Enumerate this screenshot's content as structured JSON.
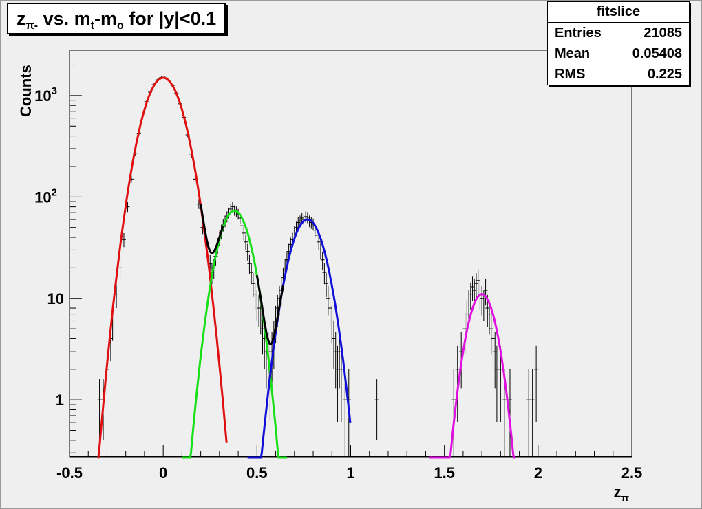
{
  "chart_data": {
    "type": "scatter",
    "title": "z",
    "title_sub": "π-",
    "title_rest": " vs. m",
    "title_sub2": "t",
    "title_rest2": "-m",
    "title_sub3": "o",
    "title_rest3": " for |y|<0.1",
    "xlabel": "z",
    "xlabel_sub": "π",
    "ylabel": "Counts",
    "xlim": [
      -0.5,
      2.5
    ],
    "ylim": [
      0.27,
      2800
    ],
    "yscale": "log",
    "x_ticks": [
      {
        "v": -0.5,
        "label": "-0.5"
      },
      {
        "v": 0,
        "label": "0"
      },
      {
        "v": 0.5,
        "label": "0.5"
      },
      {
        "v": 1,
        "label": "1"
      },
      {
        "v": 1.5,
        "label": "1.5"
      },
      {
        "v": 2,
        "label": "2"
      },
      {
        "v": 2.5,
        "label": "2.5"
      }
    ],
    "y_ticks": [
      {
        "v": 1,
        "label": "1"
      },
      {
        "v": 10,
        "label": "10"
      },
      {
        "v": 100,
        "label": "10",
        "sup": "2"
      },
      {
        "v": 1000,
        "label": "10",
        "sup": "3"
      }
    ],
    "stats": {
      "name": "fitslice",
      "rows": [
        {
          "key": "Entries",
          "value": "21085"
        },
        {
          "key": "Mean",
          "value": "0.05408"
        },
        {
          "key": "RMS",
          "value": "0.225"
        }
      ]
    },
    "fits": [
      {
        "color": "#e01010",
        "amp": 1500,
        "mean": 0.0,
        "sigma": 0.083,
        "from": -0.35,
        "to": 0.34
      },
      {
        "color": "#18e018",
        "amp": 73,
        "mean": 0.38,
        "sigma": 0.07,
        "from": 0.1,
        "to": 0.66
      },
      {
        "color": "#1010d8",
        "amp": 60,
        "mean": 0.77,
        "sigma": 0.075,
        "from": 0.45,
        "to": 1.0
      },
      {
        "color": "#e010e0",
        "amp": 11,
        "mean": 1.7,
        "sigma": 0.062,
        "from": 1.42,
        "to": 1.88
      }
    ],
    "combined_color": "#000000",
    "points": [
      [
        -0.34,
        1,
        0.6
      ],
      [
        -0.32,
        1,
        0.6
      ],
      [
        -0.3,
        2,
        0.9
      ],
      [
        -0.28,
        4,
        1.6
      ],
      [
        -0.27,
        6,
        2.2
      ],
      [
        -0.25,
        11,
        3
      ],
      [
        -0.23,
        20,
        4.5
      ],
      [
        -0.21,
        38,
        6
      ],
      [
        -0.19,
        80,
        9
      ],
      [
        -0.17,
        150,
        12
      ],
      [
        -0.15,
        270,
        17
      ],
      [
        -0.13,
        420,
        21
      ],
      [
        -0.11,
        630,
        25
      ],
      [
        -0.09,
        870,
        29
      ],
      [
        -0.07,
        1080,
        33
      ],
      [
        -0.05,
        1280,
        36
      ],
      [
        -0.03,
        1430,
        38
      ],
      [
        -0.01,
        1510,
        39
      ],
      [
        0.01,
        1500,
        39
      ],
      [
        0.03,
        1420,
        38
      ],
      [
        0.05,
        1260,
        35
      ],
      [
        0.07,
        1060,
        33
      ],
      [
        0.09,
        830,
        29
      ],
      [
        0.11,
        610,
        25
      ],
      [
        0.13,
        410,
        20
      ],
      [
        0.15,
        260,
        16
      ],
      [
        0.17,
        150,
        12
      ],
      [
        0.19,
        85,
        9
      ],
      [
        0.21,
        50,
        7
      ],
      [
        0.23,
        33,
        6
      ],
      [
        0.25,
        22,
        4.7
      ],
      [
        0.26,
        18,
        4.2
      ],
      [
        0.27,
        20,
        4.5
      ],
      [
        0.28,
        26,
        5
      ],
      [
        0.29,
        33,
        5.7
      ],
      [
        0.3,
        39,
        6.2
      ],
      [
        0.31,
        46,
        6.8
      ],
      [
        0.32,
        53,
        7.3
      ],
      [
        0.33,
        58,
        7.6
      ],
      [
        0.34,
        64,
        8
      ],
      [
        0.35,
        70,
        8.4
      ],
      [
        0.36,
        76,
        8.7
      ],
      [
        0.37,
        80,
        9
      ],
      [
        0.38,
        74,
        8.6
      ],
      [
        0.39,
        72,
        8.5
      ],
      [
        0.4,
        68,
        8.2
      ],
      [
        0.41,
        62,
        7.9
      ],
      [
        0.42,
        52,
        7.2
      ],
      [
        0.43,
        44,
        6.6
      ],
      [
        0.44,
        36,
        6
      ],
      [
        0.45,
        29,
        5.4
      ],
      [
        0.46,
        22,
        4.7
      ],
      [
        0.47,
        18,
        4.2
      ],
      [
        0.48,
        14,
        3.7
      ],
      [
        0.49,
        11,
        3.3
      ],
      [
        0.5,
        9,
        3
      ],
      [
        0.51,
        8,
        2.8
      ],
      [
        0.52,
        7,
        2.6
      ],
      [
        0.53,
        5,
        2.2
      ],
      [
        0.54,
        4,
        2
      ],
      [
        0.55,
        3,
        1.7
      ],
      [
        0.56,
        3,
        1.7
      ],
      [
        0.57,
        2,
        1.4
      ],
      [
        0.58,
        3,
        1.7
      ],
      [
        0.59,
        4,
        2
      ],
      [
        0.6,
        6,
        2.4
      ],
      [
        0.61,
        8,
        2.8
      ],
      [
        0.62,
        10,
        3.2
      ],
      [
        0.63,
        12,
        3.5
      ],
      [
        0.64,
        16,
        4
      ],
      [
        0.65,
        20,
        4.5
      ],
      [
        0.66,
        24,
        4.9
      ],
      [
        0.67,
        29,
        5.4
      ],
      [
        0.68,
        34,
        5.8
      ],
      [
        0.69,
        38,
        6.2
      ],
      [
        0.7,
        45,
        6.7
      ],
      [
        0.71,
        50,
        7
      ],
      [
        0.72,
        56,
        7.5
      ],
      [
        0.73,
        58,
        7.6
      ],
      [
        0.74,
        62,
        7.9
      ],
      [
        0.75,
        60,
        7.7
      ],
      [
        0.76,
        64,
        8
      ],
      [
        0.77,
        63,
        7.9
      ],
      [
        0.78,
        58,
        7.6
      ],
      [
        0.79,
        56,
        7.5
      ],
      [
        0.8,
        54,
        7.3
      ],
      [
        0.81,
        47,
        6.9
      ],
      [
        0.82,
        42,
        6.5
      ],
      [
        0.83,
        36,
        6
      ],
      [
        0.84,
        30,
        5.5
      ],
      [
        0.85,
        24,
        4.9
      ],
      [
        0.86,
        18,
        4.2
      ],
      [
        0.87,
        14,
        3.7
      ],
      [
        0.88,
        10,
        3.2
      ],
      [
        0.89,
        8,
        2.8
      ],
      [
        0.9,
        6,
        2.4
      ],
      [
        0.91,
        4,
        2
      ],
      [
        0.92,
        3,
        1.7
      ],
      [
        0.93,
        2,
        1.4
      ],
      [
        0.94,
        3,
        1.7
      ],
      [
        0.95,
        2,
        1.4
      ],
      [
        0.97,
        1,
        1
      ],
      [
        0.99,
        1,
        1
      ],
      [
        1.14,
        1,
        0.6
      ],
      [
        1.55,
        1,
        1
      ],
      [
        1.57,
        2,
        1.4
      ],
      [
        1.59,
        3,
        1.7
      ],
      [
        1.61,
        5,
        2.2
      ],
      [
        1.62,
        7,
        2.6
      ],
      [
        1.63,
        9,
        3
      ],
      [
        1.64,
        11,
        3.3
      ],
      [
        1.65,
        13,
        3.6
      ],
      [
        1.66,
        12,
        3.5
      ],
      [
        1.67,
        14,
        3.7
      ],
      [
        1.68,
        15,
        3.9
      ],
      [
        1.69,
        11,
        3.3
      ],
      [
        1.7,
        10,
        3.2
      ],
      [
        1.71,
        9,
        3
      ],
      [
        1.72,
        12,
        3.5
      ],
      [
        1.73,
        8,
        2.8
      ],
      [
        1.74,
        7,
        2.6
      ],
      [
        1.75,
        5,
        2.2
      ],
      [
        1.76,
        4,
        2
      ],
      [
        1.77,
        3,
        1.7
      ],
      [
        1.78,
        2,
        1.4
      ],
      [
        1.8,
        2,
        1.4
      ],
      [
        1.82,
        1,
        1
      ],
      [
        1.85,
        1,
        1
      ],
      [
        1.95,
        1,
        1
      ],
      [
        1.97,
        1,
        1
      ],
      [
        1.99,
        2,
        1.4
      ]
    ]
  }
}
